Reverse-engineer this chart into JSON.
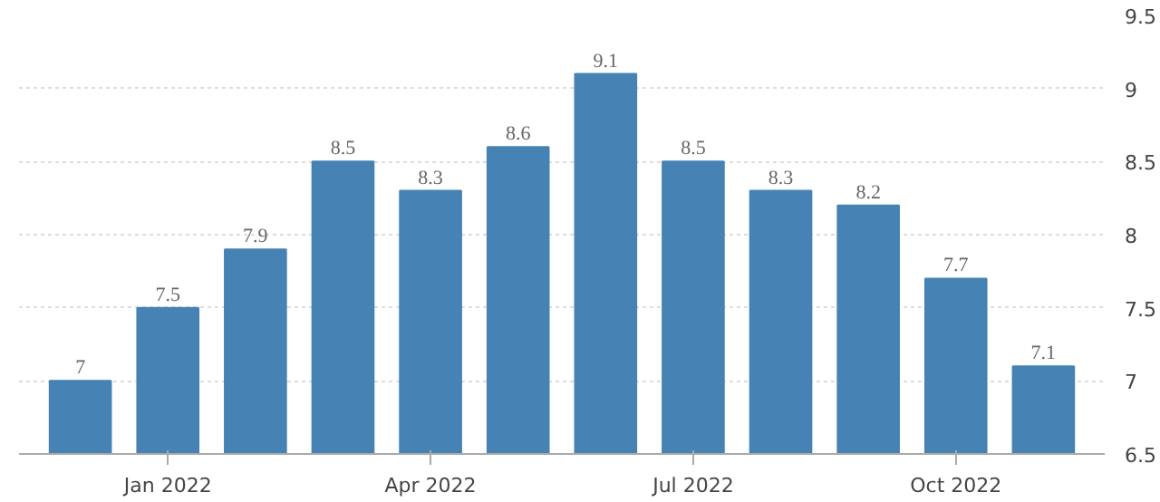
{
  "chart_data": {
    "type": "bar",
    "categories": [
      null,
      "Jan 2022",
      null,
      null,
      "Apr 2022",
      null,
      null,
      "Jul 2022",
      null,
      null,
      "Oct 2022",
      null
    ],
    "values": [
      7,
      7.5,
      7.9,
      8.5,
      8.3,
      8.6,
      9.1,
      8.5,
      8.3,
      8.2,
      7.7,
      7.1
    ],
    "color": "#4682b4",
    "ylim": [
      6.5,
      9.5
    ],
    "yticks": [
      6.5,
      7,
      7.5,
      8,
      8.5,
      9,
      9.5
    ],
    "grid": "y",
    "data_labels": true
  }
}
